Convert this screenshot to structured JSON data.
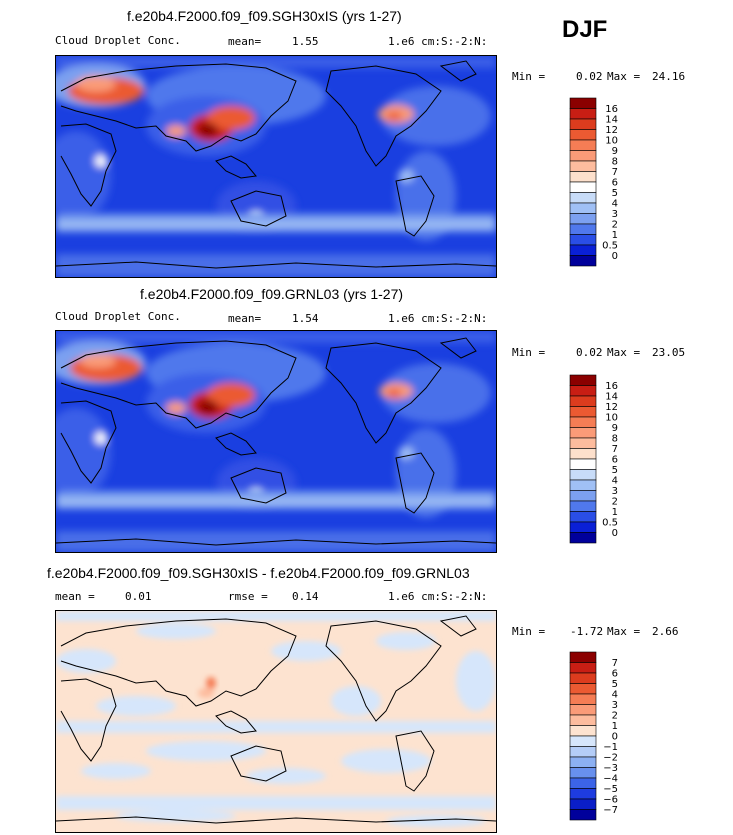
{
  "season": "DJF",
  "panels": [
    {
      "title": "f.e20b4.F2000.f09_f09.SGH30xIS (yrs 1-27)",
      "variable": "Cloud Droplet Conc.",
      "stat1_label": "mean=",
      "stat1_value": "1.55",
      "units": "1.e6 cm:S:-2:N:",
      "min_label": "Min =",
      "min_value": "0.02",
      "max_label": "Max =",
      "max_value": "24.16"
    },
    {
      "title": "f.e20b4.F2000.f09_f09.GRNL03 (yrs 1-27)",
      "variable": "Cloud Droplet Conc.",
      "stat1_label": "mean=",
      "stat1_value": "1.54",
      "units": "1.e6 cm:S:-2:N:",
      "min_label": "Min =",
      "min_value": "0.02",
      "max_label": "Max =",
      "max_value": "23.05"
    },
    {
      "title": "f.e20b4.F2000.f09_f09.SGH30xIS - f.e20b4.F2000.f09_f09.GRNL03",
      "stat1_label": "mean =",
      "stat1_value": "0.01",
      "stat2_label": "rmse =",
      "stat2_value": "0.14",
      "units": "1.e6 cm:S:-2:N:",
      "min_label": "Min =",
      "min_value": "-1.72",
      "max_label": "Max =",
      "max_value": "2.66"
    }
  ],
  "chart_data": [
    {
      "type": "heatmap",
      "title": "f.e20b4.F2000.f09_f09.SGH30xIS (yrs 1-27)",
      "projection": "global lat-lon, map background",
      "levels": [
        "16",
        "14",
        "12",
        "10",
        "9",
        "8",
        "7",
        "6",
        "5",
        "4",
        "3",
        "2",
        "1",
        "0.5",
        "0"
      ],
      "colors": [
        "#8b0000",
        "#c81e14",
        "#dc3c1e",
        "#eb5a32",
        "#f57d55",
        "#fa9b78",
        "#fdbc9e",
        "#fde0cc",
        "#ffffff",
        "#c8dcf8",
        "#a0c0f5",
        "#7ca0f0",
        "#5078ec",
        "#2a4ee6",
        "#0a20d6",
        "#00009b"
      ],
      "mean": 1.55,
      "min": 0.02,
      "max": 24.16
    },
    {
      "type": "heatmap",
      "title": "f.e20b4.F2000.f09_f09.GRNL03 (yrs 1-27)",
      "projection": "global lat-lon, map background",
      "levels": [
        "16",
        "14",
        "12",
        "10",
        "9",
        "8",
        "7",
        "6",
        "5",
        "4",
        "3",
        "2",
        "1",
        "0.5",
        "0"
      ],
      "colors": [
        "#8b0000",
        "#c81e14",
        "#dc3c1e",
        "#eb5a32",
        "#f57d55",
        "#fa9b78",
        "#fdbc9e",
        "#fde0cc",
        "#ffffff",
        "#c8dcf8",
        "#a0c0f5",
        "#7ca0f0",
        "#5078ec",
        "#2a4ee6",
        "#0a20d6",
        "#00009b"
      ],
      "mean": 1.54,
      "min": 0.02,
      "max": 23.05
    },
    {
      "type": "heatmap",
      "title": "f.e20b4.F2000.f09_f09.SGH30xIS - f.e20b4.F2000.f09_f09.GRNL03",
      "projection": "global lat-lon, map background",
      "levels": [
        "7",
        "6",
        "5",
        "4",
        "3",
        "2",
        "1",
        "0",
        "−1",
        "−2",
        "−3",
        "−4",
        "−5",
        "−6",
        "−7"
      ],
      "colors": [
        "#8b0000",
        "#c81e14",
        "#dc3c1e",
        "#eb5a32",
        "#f57d55",
        "#fa9b78",
        "#fdbc9e",
        "#fde3d0",
        "#d6e6fb",
        "#b4cdf7",
        "#8cb0f2",
        "#6890ee",
        "#3c64e8",
        "#1e3ce0",
        "#0a1ec8",
        "#00009b"
      ],
      "mean": 0.01,
      "rmse": 0.14,
      "min": -1.72,
      "max": 2.66
    }
  ]
}
